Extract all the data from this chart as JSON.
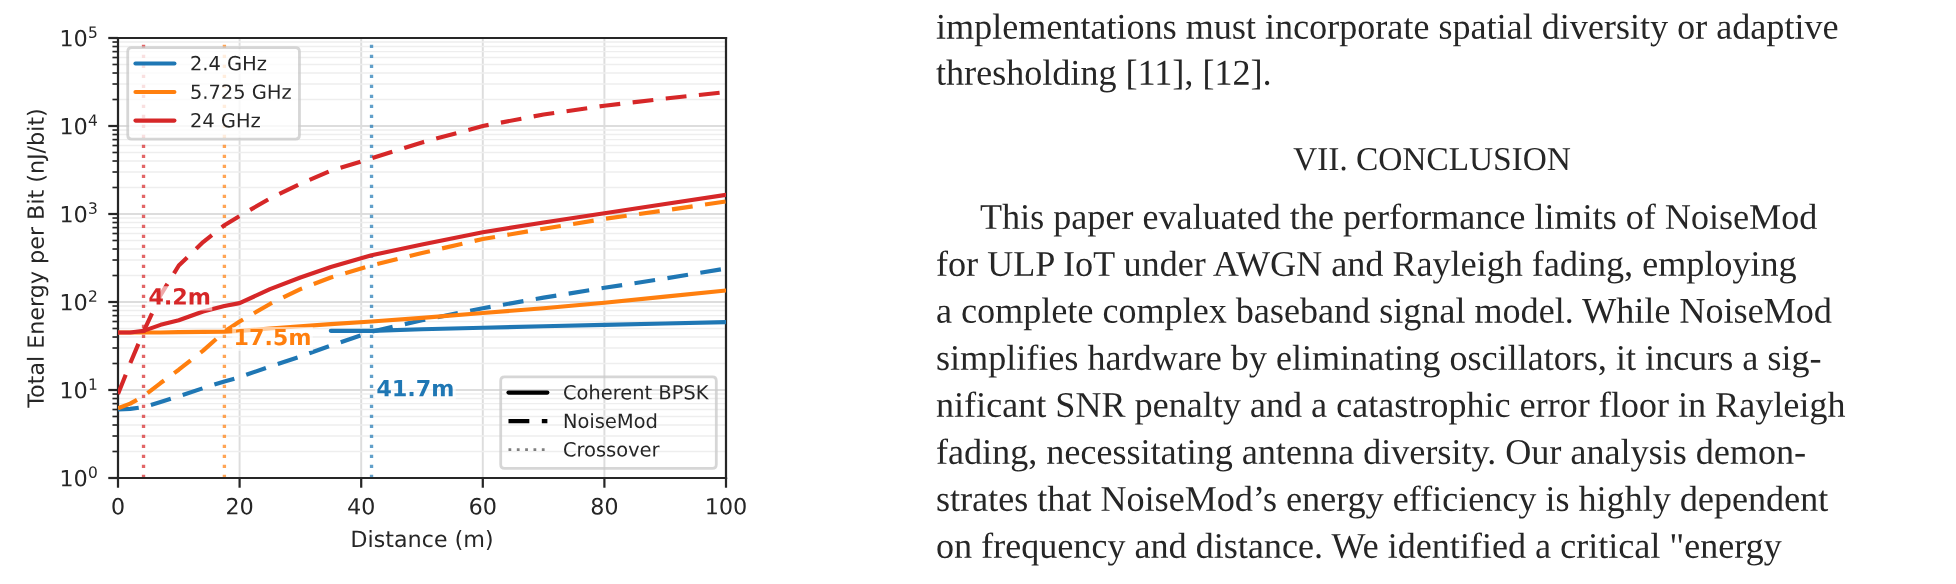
{
  "chart_data": {
    "type": "line",
    "ylabel": "Total Energy per Bit (nJ/bit)",
    "xlabel": "Distance (m)",
    "x": [
      0,
      2,
      4.2,
      7,
      10,
      14,
      17.5,
      20,
      25,
      30,
      35,
      41.7,
      50,
      60,
      70,
      80,
      90,
      100
    ],
    "series": [
      {
        "name": "2.4 GHz",
        "color": "#1f77b4",
        "line_style": "solid",
        "values": [
          null,
          null,
          null,
          null,
          null,
          null,
          null,
          null,
          null,
          null,
          47,
          47,
          49,
          51,
          53,
          55,
          57,
          59
        ]
      },
      {
        "color": "#1f77b4",
        "line_style": "dashed",
        "values": [
          6,
          6.1,
          6.4,
          7.3,
          8.5,
          10.5,
          12.5,
          14,
          18.5,
          24,
          32,
          46,
          62,
          85,
          112,
          145,
          185,
          240
        ]
      },
      {
        "name": "5.725 GHz",
        "color": "#ff7f0e",
        "line_style": "solid",
        "values": [
          45,
          45,
          45,
          45,
          45.5,
          45.8,
          46,
          47,
          50,
          53,
          56,
          60,
          66,
          75,
          85,
          98,
          115,
          135
        ]
      },
      {
        "color": "#ff7f0e",
        "line_style": "dashed",
        "values": [
          6.2,
          7,
          8.5,
          12,
          17,
          28,
          46,
          60,
          95,
          140,
          190,
          260,
          360,
          520,
          680,
          880,
          1100,
          1390
        ]
      },
      {
        "name": "24 GHz",
        "color": "#d62728",
        "line_style": "solid",
        "values": [
          45,
          45,
          47,
          55,
          62,
          78,
          90,
          97,
          140,
          190,
          250,
          340,
          450,
          620,
          800,
          1020,
          1300,
          1650
        ]
      },
      {
        "color": "#d62728",
        "line_style": "dashed",
        "values": [
          9,
          20,
          46,
          120,
          260,
          480,
          745,
          950,
          1500,
          2200,
          3100,
          4300,
          6500,
          10000,
          13500,
          17000,
          20500,
          24300
        ]
      }
    ],
    "ref_lines": [
      {
        "axis": "x",
        "value": 4.2,
        "color": "#d62728",
        "line_style": "dotted"
      },
      {
        "axis": "x",
        "value": 17.5,
        "color": "#ff7f0e",
        "line_style": "dotted"
      },
      {
        "axis": "x",
        "value": 41.7,
        "color": "#1f77b4",
        "line_style": "dotted"
      }
    ],
    "annotations": [
      {
        "text": "4.2m",
        "x": 5,
        "y": 110
      },
      {
        "text": "17.5m",
        "x": 19,
        "y": 38
      },
      {
        "text": "41.7m",
        "x": 42.5,
        "y": 10
      },
      "Coherent BPSK",
      "NoiseMod",
      "Crossover",
      "implementations must incorporate spatial diversity or adaptive",
      "thresholding [11], [12].",
      "VII. CONCLUSION",
      "This paper evaluated the performance limits of NoiseMod",
      "for ULP IoT under AWGN and Rayleigh fading, employing",
      "a complete complex baseband signal model. While NoiseMod",
      "simplifies hardware by eliminating oscillators, it incurs a sig-",
      "nificant SNR penalty and a catastrophic error floor in Rayleigh",
      "fading, necessitating antenna diversity. Our analysis demon-",
      "strates that NoiseMod’s energy efficiency is highly dependent",
      "on frequency and distance. We identified a critical \"energy"
    ],
    "log": "y",
    "xlim": [
      0,
      100
    ],
    "ylim": [
      1,
      100000
    ],
    "xticks": [
      0,
      20,
      40,
      60,
      80,
      100
    ],
    "yticks": [
      {
        "value": 1,
        "label": "10$^{0}$"
      },
      {
        "value": 10,
        "label": "10$^{1}$"
      },
      {
        "value": 100,
        "label": "10$^{2}$"
      },
      {
        "value": 1000,
        "label": "10$^{3}$"
      },
      {
        "value": 10000,
        "label": "10$^{4}$"
      },
      {
        "value": 100000,
        "label": "10$^{5}$"
      }
    ],
    "grid": true,
    "legend": "top left"
  }
}
